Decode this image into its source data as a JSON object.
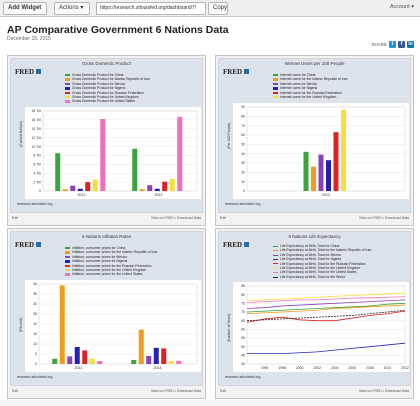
{
  "toolbar": {
    "add_widget": "Add Widget",
    "actions": "Actions",
    "url": "https://research.stlouisfed.org/dashboard/7!",
    "copy": "Copy",
    "account": "Account"
  },
  "page": {
    "title": "AP Comparative Government 6 Nations Data",
    "date": "December 15, 2015",
    "share": "SHARE"
  },
  "colors": {
    "china": "#3aa33a",
    "iran": "#f39c1a",
    "mexico": "#8b3fbe",
    "nigeria": "#2222b8",
    "russia": "#dd2222",
    "uk": "#f7df3a",
    "us": "#f06fbe",
    "world": "#222222"
  },
  "panels": [
    {
      "title": "Gross Domestic Product",
      "source": "research.stlouisfed.org",
      "footer_left": "Edit",
      "footer_right": "View on FRED • Download Data",
      "legend": [
        "Gross Domestic Product for China",
        "Gross Domestic Product for Islamic Republic of Iran",
        "Gross Domestic Product for Mexico",
        "Gross Domestic Product for Nigeria",
        "Gross Domestic Product for Russian Federation",
        "Gross Domestic Product for United Kingdom",
        "Gross Domestic Product for United States"
      ],
      "chart_data": {
        "type": "bar",
        "categories": [
          "2012",
          "2013"
        ],
        "ylabel": "(Current Dollars)",
        "yticks": [
          "0",
          "2 Tril",
          "4 Tril",
          "6 Tril",
          "8 Tril",
          "10 Tril",
          "12 Tril",
          "14 Tril",
          "16 Tril",
          "18 Tril"
        ],
        "ylim": [
          0,
          18
        ],
        "series": [
          {
            "name": "Gross Domestic Product for China",
            "color_key": "china",
            "values": [
              8.5,
              9.5
            ]
          },
          {
            "name": "Gross Domestic Product for Islamic Republic of Iran",
            "color_key": "iran",
            "values": [
              0.4,
              0.4
            ]
          },
          {
            "name": "Gross Domestic Product for Mexico",
            "color_key": "mexico",
            "values": [
              1.2,
              1.3
            ]
          },
          {
            "name": "Gross Domestic Product for Nigeria",
            "color_key": "nigeria",
            "values": [
              0.5,
              0.5
            ]
          },
          {
            "name": "Gross Domestic Product for Russian Federation",
            "color_key": "russia",
            "values": [
              2.0,
              2.1
            ]
          },
          {
            "name": "Gross Domestic Product for United Kingdom",
            "color_key": "uk",
            "values": [
              2.6,
              2.7
            ]
          },
          {
            "name": "Gross Domestic Product for United States",
            "color_key": "us",
            "values": [
              16.2,
              16.7
            ]
          }
        ]
      }
    },
    {
      "title": "Internet Users per 100 People",
      "source": "research.stlouisfed.org",
      "footer_left": "Edit",
      "footer_right": "View on FRED • Download Data",
      "legend": [
        "Internet users for China",
        "Internet users for the Islamic Republic of Iran",
        "Internet users for Mexico",
        "Internet users for Nigeria",
        "Internet users for the Russian Federation",
        "Internet users for the United Kingdom"
      ],
      "chart_data": {
        "type": "bar",
        "categories": [
          "2012"
        ],
        "ylabel": "(Per 100 People)",
        "yticks": [
          "0",
          "10",
          "20",
          "30",
          "40",
          "50",
          "60",
          "70",
          "80",
          "90"
        ],
        "ylim": [
          0,
          90
        ],
        "series": [
          {
            "name": "Internet users for China",
            "color_key": "china",
            "values": [
              42
            ]
          },
          {
            "name": "Internet users for the Islamic Republic of Iran",
            "color_key": "iran",
            "values": [
              26
            ]
          },
          {
            "name": "Internet users for Mexico",
            "color_key": "mexico",
            "values": [
              39
            ]
          },
          {
            "name": "Internet users for Nigeria",
            "color_key": "nigeria",
            "values": [
              33
            ]
          },
          {
            "name": "Internet users for the Russian Federation",
            "color_key": "russia",
            "values": [
              63
            ]
          },
          {
            "name": "Internet users for the United Kingdom",
            "color_key": "uk",
            "values": [
              87
            ]
          }
        ]
      }
    },
    {
      "title": "6 Nations Inflation Rates",
      "source": "research.stlouisfed.org",
      "footer_left": "Edit",
      "footer_right": "View on FRED • Download Data",
      "legend": [
        "Inflation, consumer prices for China",
        "Inflation, consumer prices for the Islamic Republic of Iran",
        "Inflation, consumer prices for Mexico",
        "Inflation, consumer prices for Nigeria",
        "Inflation, consumer prices for the Russian Federation",
        "Inflation, consumer prices for the United Kingdom",
        "Inflation, consumer prices for the United States"
      ],
      "chart_data": {
        "type": "bar",
        "categories": [
          "2013",
          "2014"
        ],
        "ylabel": "(Percent)",
        "yticks": [
          "0",
          "5",
          "10",
          "15",
          "20",
          "25",
          "30",
          "35",
          "40"
        ],
        "ylim": [
          0,
          40
        ],
        "series": [
          {
            "name": "Inflation, consumer prices for China",
            "color_key": "china",
            "values": [
              2.6,
              2.0
            ]
          },
          {
            "name": "Inflation, consumer prices for the Islamic Republic of Iran",
            "color_key": "iran",
            "values": [
              39.3,
              17.2
            ]
          },
          {
            "name": "Inflation, consumer prices for Mexico",
            "color_key": "mexico",
            "values": [
              3.8,
              4.0
            ]
          },
          {
            "name": "Inflation, consumer prices for Nigeria",
            "color_key": "nigeria",
            "values": [
              8.5,
              8.1
            ]
          },
          {
            "name": "Inflation, consumer prices for the Russian Federation",
            "color_key": "russia",
            "values": [
              6.8,
              7.8
            ]
          },
          {
            "name": "Inflation, consumer prices for the United Kingdom",
            "color_key": "uk",
            "values": [
              2.6,
              1.5
            ]
          },
          {
            "name": "Inflation, consumer prices for the United States",
            "color_key": "us",
            "values": [
              1.5,
              1.6
            ]
          }
        ]
      }
    },
    {
      "title": "6 Nations Life Expectancy",
      "source": "research.stlouisfed.org",
      "footer_left": "Edit",
      "footer_right": "View on FRED • Download Data",
      "legend": [
        "Life Expectancy at Birth, Total for China",
        "Life Expectancy at Birth, Total for the Islamic Republic of Iran",
        "Life Expectancy at Birth, Total for Mexico",
        "Life Expectancy at Birth, Total for Nigeria",
        "Life Expectancy at Birth, Total for the Russian Federation",
        "Life Expectancy at Birth, Total for the United Kingdom",
        "Life Expectancy at Birth, Total for the United States",
        "Life Expectancy at Birth, Total for the World"
      ],
      "chart_data": {
        "type": "line",
        "x": [
          1994,
          1996,
          1998,
          2000,
          2002,
          2004,
          2006,
          2008,
          2010,
          2012
        ],
        "xticks": [
          "1996",
          "1998",
          "2000",
          "2002",
          "2004",
          "2006",
          "2008",
          "2010",
          "2012"
        ],
        "ylabel": "(Number of Years)",
        "yticks": [
          "40",
          "45",
          "50",
          "55",
          "60",
          "65",
          "70",
          "75",
          "80",
          "85"
        ],
        "ylim": [
          40,
          85
        ],
        "series": [
          {
            "name": "Life Expectancy at Birth, Total for China",
            "color_key": "china",
            "values": [
              70,
              70.5,
              71,
              71.5,
              72,
              72.5,
              73,
              73.5,
              74.5,
              75
            ]
          },
          {
            "name": "Life Expectancy at Birth, Total for the Islamic Republic of Iran",
            "color_key": "iran",
            "values": [
              69,
              69.5,
              70,
              70.5,
              71,
              72,
              72.5,
              73,
              73.5,
              74
            ]
          },
          {
            "name": "Life Expectancy at Birth, Total for Mexico",
            "color_key": "mexico",
            "values": [
              72,
              72.5,
              73.5,
              74,
              74.5,
              75,
              75.5,
              76,
              76.5,
              77
            ]
          },
          {
            "name": "Life Expectancy at Birth, Total for Nigeria",
            "color_key": "nigeria",
            "values": [
              46,
              46,
              46,
              46.5,
              47,
              48,
              49,
              50,
              51,
              52
            ]
          },
          {
            "name": "Life Expectancy at Birth, Total for the Russian Federation",
            "color_key": "russia",
            "values": [
              64,
              66,
              67,
              65.5,
              65,
              65,
              66.5,
              68,
              69,
              70.5
            ]
          },
          {
            "name": "Life Expectancy at Birth, Total for the United Kingdom",
            "color_key": "uk",
            "values": [
              76.5,
              77,
              77.5,
              78,
              78.5,
              79,
              79.5,
              80,
              80.5,
              81
            ]
          },
          {
            "name": "Life Expectancy at Birth, Total for the United States",
            "color_key": "us",
            "values": [
              75.5,
              76,
              76.5,
              77,
              77,
              77.5,
              78,
              78.2,
              78.5,
              78.8
            ]
          },
          {
            "name": "Life Expectancy at Birth, Total for the World",
            "color_key": "world",
            "values": [
              65,
              65.5,
              66,
              66.5,
              67,
              67.5,
              68,
              69,
              70,
              71
            ],
            "dashed": true
          }
        ]
      }
    }
  ]
}
